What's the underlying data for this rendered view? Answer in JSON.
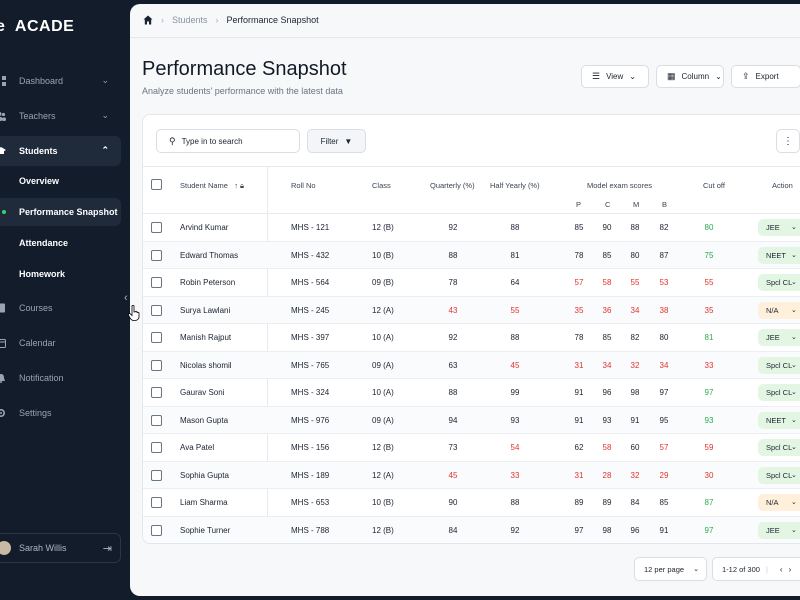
{
  "brand": {
    "logo": "e",
    "name": "ACADE"
  },
  "sidebar": {
    "items": [
      {
        "label": "Dashboard",
        "icon": "dashboard-icon",
        "chevron": "⌄"
      },
      {
        "label": "Teachers",
        "icon": "teachers-icon",
        "chevron": "⌄"
      },
      {
        "label": "Students",
        "icon": "students-icon",
        "chevron": "⌃"
      },
      {
        "label": "Courses",
        "icon": "courses-icon"
      },
      {
        "label": "Calendar",
        "icon": "calendar-icon"
      },
      {
        "label": "Notification",
        "icon": "bell-icon"
      },
      {
        "label": "Settings",
        "icon": "gear-icon"
      }
    ],
    "subitems": [
      "Overview",
      "Performance Snapshot",
      "Attendance",
      "Homework"
    ],
    "user": {
      "name": "Sarah Willis"
    }
  },
  "breadcrumb": {
    "level1": "Students",
    "level2": "Performance Snapshot"
  },
  "page": {
    "title": "Performance Snapshot",
    "subtitle": "Analyze students' performance with the latest data"
  },
  "toolbar": {
    "view_label": "View",
    "column_label": "Column",
    "export_label": "Export"
  },
  "search": {
    "placeholder": "Type in to search"
  },
  "filter": {
    "label": "Filter"
  },
  "table": {
    "headers": {
      "student_name": "Student Name",
      "roll_no": "Roll No",
      "class": "Class",
      "quarterly": "Quarterly (%)",
      "half_yearly": "Half Yearly (%)",
      "model_exam": "Model exam scores",
      "cut_off": "Cut off",
      "action": "Action",
      "p": "P",
      "c": "C",
      "m": "M",
      "b": "B"
    },
    "rows": [
      {
        "name": "Arvind Kumar",
        "roll": "MHS - 121",
        "cls": "12 (B)",
        "q": "92",
        "h": "88",
        "p": "85",
        "c": "90",
        "m": "88",
        "b": "82",
        "cut": "80",
        "action": "JEE"
      },
      {
        "name": "Edward Thomas",
        "roll": "MHS - 432",
        "cls": "10 (B)",
        "q": "88",
        "h": "81",
        "p": "78",
        "c": "85",
        "m": "80",
        "b": "87",
        "cut": "75",
        "action": "NEET"
      },
      {
        "name": "Robin Peterson",
        "roll": "MHS - 564",
        "cls": "09 (B)",
        "q": "78",
        "h": "64",
        "p": "57",
        "c": "58",
        "m": "55",
        "b": "53",
        "cut": "55",
        "action": "Spcl CL"
      },
      {
        "name": "Surya Lawlani",
        "roll": "MHS - 245",
        "cls": "12 (A)",
        "q": "43",
        "h": "55",
        "p": "35",
        "c": "36",
        "m": "34",
        "b": "38",
        "cut": "35",
        "action": "N/A"
      },
      {
        "name": "Manish Rajput",
        "roll": "MHS - 397",
        "cls": "10 (A)",
        "q": "92",
        "h": "88",
        "p": "78",
        "c": "85",
        "m": "82",
        "b": "80",
        "cut": "81",
        "action": "JEE"
      },
      {
        "name": "Nicolas shomil",
        "roll": "MHS - 765",
        "cls": "09 (A)",
        "q": "63",
        "h": "45",
        "p": "31",
        "c": "34",
        "m": "32",
        "b": "34",
        "cut": "33",
        "action": "Spcl CL"
      },
      {
        "name": "Gaurav Soni",
        "roll": "MHS - 324",
        "cls": "10 (A)",
        "q": "88",
        "h": "99",
        "p": "91",
        "c": "96",
        "m": "98",
        "b": "97",
        "cut": "97",
        "action": "Spcl CL"
      },
      {
        "name": "Mason Gupta",
        "roll": "MHS - 976",
        "cls": "09 (A)",
        "q": "94",
        "h": "93",
        "p": "91",
        "c": "93",
        "m": "91",
        "b": "95",
        "cut": "93",
        "action": "NEET"
      },
      {
        "name": "Ava Patel",
        "roll": "MHS - 156",
        "cls": "12 (B)",
        "q": "73",
        "h": "54",
        "p": "62",
        "c": "58",
        "m": "60",
        "b": "57",
        "cut": "59",
        "action": "Spcl CL"
      },
      {
        "name": "Sophia Gupta",
        "roll": "MHS - 189",
        "cls": "12 (A)",
        "q": "45",
        "h": "33",
        "p": "31",
        "c": "28",
        "m": "32",
        "b": "29",
        "cut": "30",
        "action": "Spcl CL"
      },
      {
        "name": "Liam Sharma",
        "roll": "MHS - 653",
        "cls": "10 (B)",
        "q": "90",
        "h": "88",
        "p": "89",
        "c": "89",
        "m": "84",
        "b": "85",
        "cut": "87",
        "action": "N/A"
      },
      {
        "name": "Sophie Turner",
        "roll": "MHS - 788",
        "cls": "12 (B)",
        "q": "84",
        "h": "92",
        "p": "97",
        "c": "98",
        "m": "96",
        "b": "91",
        "cut": "97",
        "action": "JEE"
      }
    ]
  },
  "pagination": {
    "per_page": "12 per page",
    "range": "1-12 of 300"
  },
  "colors": {
    "red": "#e0332e",
    "green": "#2fa84f",
    "sidebar": "#131c2b",
    "action_green_bg": "#e3f6e4",
    "action_orange_bg": "#fff0db"
  }
}
